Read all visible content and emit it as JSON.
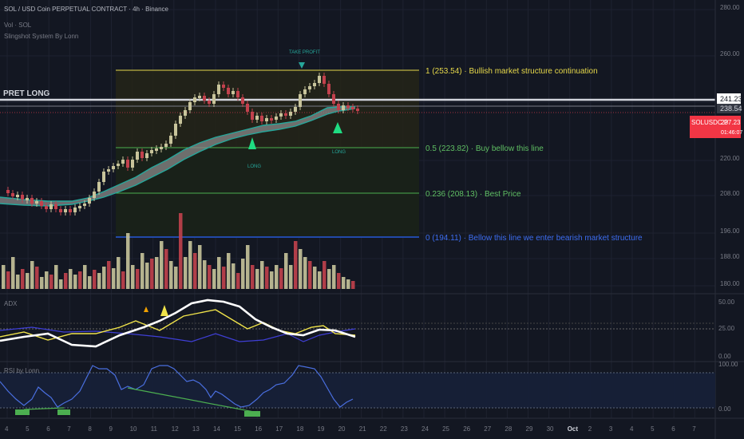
{
  "header": {
    "title": "SOL / USD Coin PERPETUAL CONTRACT · 4h · Binance",
    "indicator1": "Vol · SOL",
    "indicator2": "Slingshot System By Lonn"
  },
  "price_axis": {
    "labels": [
      "280.00",
      "260.00",
      "241.23",
      "238.54",
      "237.23",
      "01:46:07",
      "220.00",
      "208.00",
      "196.00",
      "188.00",
      "180.00"
    ],
    "tag_label": "SOLUSDC.P",
    "tag_countdown": "01:46:07",
    "current_price": "237.23",
    "white_level": "241.23",
    "gray_level": "238.54"
  },
  "fib_levels": [
    {
      "ratio": "1 (253.54)",
      "note": "Bullish market structure continuation",
      "color": "#e6d84a",
      "price": 253.54
    },
    {
      "ratio": "0.5 (223.82)",
      "note": "Buy bellow this line",
      "color": "#4caf50",
      "price": 223.82
    },
    {
      "ratio": "0.236 (208.13)",
      "note": "Best Price",
      "color": "#4caf50",
      "price": 208.13
    },
    {
      "ratio": "0 (194.11)",
      "note": "Bellow this line we enter bearish market structure",
      "color": "#2962ff",
      "price": 194.11
    }
  ],
  "annotations": {
    "pret_long": "PRET LONG",
    "take_profit": "TAKE PROFIT",
    "long1": "LONG",
    "long2": "LONG"
  },
  "adx_pane": {
    "title": "ADX",
    "levels": [
      "50.00",
      "25.00",
      "0.00"
    ]
  },
  "rsi_pane": {
    "title": "RSI by Lonn",
    "levels": [
      "100.00",
      "0.00"
    ]
  },
  "time_axis": [
    "4",
    "5",
    "6",
    "7",
    "8",
    "9",
    "10",
    "11",
    "12",
    "13",
    "14",
    "15",
    "16",
    "17",
    "18",
    "19",
    "20",
    "21",
    "22",
    "23",
    "24",
    "25",
    "26",
    "27",
    "28",
    "29",
    "30",
    "Oct",
    "2",
    "3",
    "4",
    "5",
    "6",
    "7"
  ],
  "colors": {
    "background": "#131722",
    "bull": "#c8c49b",
    "bear": "#c2414d",
    "ema_band": "#9e9e9e",
    "ema_edge": "#26a69a",
    "adx_white": "#ffffff",
    "adx_yellow": "#f0e34a",
    "adx_blue": "#3f3fd6",
    "rsi_line": "#4a6fe0",
    "price_tag": "#f23645"
  }
}
